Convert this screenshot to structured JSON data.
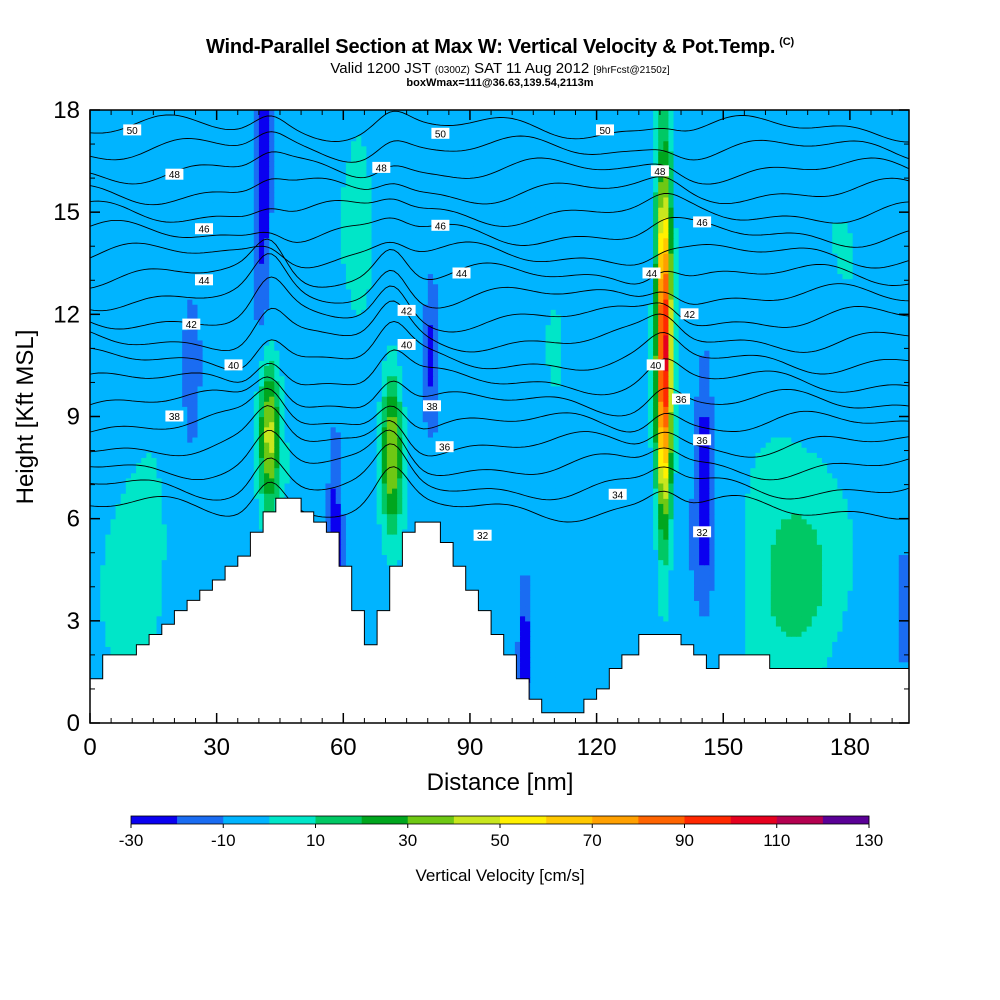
{
  "title": "Wind-Parallel Section at Max W: Vertical Velocity & Pot.Temp.",
  "title_mark": "(C)",
  "subtitle_a": "Valid 1200 JST",
  "subtitle_b": "(0300Z)",
  "subtitle_c": "SAT 11 Aug 2012",
  "subtitle_d": "[9hrFcst@2150z]",
  "subtitle2": "boxWmax=111@36.63,139.54,2113m",
  "chart_data": {
    "type": "heatmap",
    "title": "Wind-Parallel Section at Max W: Vertical Velocity & Pot.Temp.",
    "xlabel": "Distance [nm]",
    "ylabel": "Height [Kft MSL]",
    "xlim": [
      0,
      194
    ],
    "ylim": [
      0,
      18
    ],
    "x_ticks": [
      0,
      30,
      60,
      90,
      120,
      150,
      180
    ],
    "y_ticks": [
      0,
      3,
      6,
      9,
      12,
      15,
      18
    ],
    "colorbar": {
      "label": "Vertical Velocity [cm/s]",
      "tick_labels": [
        -30,
        -10,
        10,
        30,
        50,
        70,
        90,
        110,
        130
      ],
      "bounds": [
        -30,
        -20,
        -10,
        0,
        10,
        20,
        30,
        40,
        50,
        60,
        70,
        80,
        90,
        100,
        110,
        120,
        130
      ],
      "colors": [
        "#0a00f0",
        "#1a6cf2",
        "#00b4ff",
        "#00e6c8",
        "#00c864",
        "#00a61e",
        "#6ec814",
        "#c8e61e",
        "#fff000",
        "#ffc800",
        "#ffa000",
        "#ff6400",
        "#ff2800",
        "#e6001e",
        "#b40050",
        "#5a0096"
      ]
    },
    "background_level": -5,
    "updrafts": [
      {
        "x": 42.5,
        "y": 8.5,
        "sx": 1.7,
        "sy": 1.5,
        "peak": 48
      },
      {
        "x": 71.5,
        "y": 8.0,
        "sx": 1.8,
        "sy": 1.6,
        "peak": 50
      },
      {
        "x": 136,
        "y": 11.0,
        "sx": 1.3,
        "sy": 3.4,
        "peak": 111
      },
      {
        "x": 64,
        "y": 14.5,
        "sx": 2.5,
        "sy": 3,
        "peak": 8
      },
      {
        "x": 110,
        "y": 11,
        "sx": 3,
        "sy": 3,
        "peak": 6
      },
      {
        "x": 10,
        "y": 5.0,
        "sx": 8,
        "sy": 1.8,
        "peak": 9
      },
      {
        "x": 168,
        "y": 4.0,
        "sx": 8,
        "sy": 2,
        "peak": 22
      },
      {
        "x": 180,
        "y": 12,
        "sx": 5,
        "sy": 3,
        "peak": 6
      }
    ],
    "downdrafts": [
      {
        "x": 41,
        "y": 16.5,
        "sx": 1.2,
        "sy": 2.5,
        "peak": -28
      },
      {
        "x": 58,
        "y": 5.3,
        "sx": 1.3,
        "sy": 2.0,
        "peak": -25
      },
      {
        "x": 103,
        "y": 2.2,
        "sx": 1.0,
        "sy": 1.3,
        "peak": -22
      },
      {
        "x": 145.5,
        "y": 7.0,
        "sx": 1.4,
        "sy": 1.8,
        "peak": -30
      },
      {
        "x": 81,
        "y": 11.0,
        "sx": 1.3,
        "sy": 1.5,
        "peak": -18
      },
      {
        "x": 24,
        "y": 10.0,
        "sx": 1.5,
        "sy": 1.5,
        "peak": -15
      },
      {
        "x": 193,
        "y": 3.6,
        "sx": 1.3,
        "sy": 1.2,
        "peak": -18
      }
    ],
    "terrain": [
      [
        0,
        1.3
      ],
      [
        3,
        1.3
      ],
      [
        3,
        2
      ],
      [
        11,
        2
      ],
      [
        11,
        2.3
      ],
      [
        14,
        2.3
      ],
      [
        14,
        2.6
      ],
      [
        17,
        2.6
      ],
      [
        17,
        2.9
      ],
      [
        20,
        2.9
      ],
      [
        20,
        3.3
      ],
      [
        23,
        3.3
      ],
      [
        23,
        3.6
      ],
      [
        26,
        3.6
      ],
      [
        26,
        3.9
      ],
      [
        29,
        3.9
      ],
      [
        29,
        4.2
      ],
      [
        32,
        4.2
      ],
      [
        32,
        4.6
      ],
      [
        35,
        4.6
      ],
      [
        35,
        4.9
      ],
      [
        38,
        4.9
      ],
      [
        38,
        5.6
      ],
      [
        41,
        5.6
      ],
      [
        41,
        6.2
      ],
      [
        44,
        6.2
      ],
      [
        44,
        6.6
      ],
      [
        50,
        6.6
      ],
      [
        50,
        6.2
      ],
      [
        53,
        6.2
      ],
      [
        53,
        5.9
      ],
      [
        56,
        5.9
      ],
      [
        56,
        5.6
      ],
      [
        59,
        5.6
      ],
      [
        59,
        4.6
      ],
      [
        62,
        4.6
      ],
      [
        62,
        3.3
      ],
      [
        65,
        3.3
      ],
      [
        65,
        2.3
      ],
      [
        68,
        2.3
      ],
      [
        68,
        3.3
      ],
      [
        71,
        3.3
      ],
      [
        71,
        4.6
      ],
      [
        74,
        4.6
      ],
      [
        74,
        5.6
      ],
      [
        77,
        5.6
      ],
      [
        77,
        5.9
      ],
      [
        83,
        5.9
      ],
      [
        83,
        5.3
      ],
      [
        86,
        5.3
      ],
      [
        86,
        4.6
      ],
      [
        89,
        4.6
      ],
      [
        89,
        3.9
      ],
      [
        92,
        3.9
      ],
      [
        92,
        3.3
      ],
      [
        95,
        3.3
      ],
      [
        95,
        2.6
      ],
      [
        98,
        2.6
      ],
      [
        98,
        2.0
      ],
      [
        101,
        2.0
      ],
      [
        101,
        1.3
      ],
      [
        104,
        1.3
      ],
      [
        104,
        0.7
      ],
      [
        107,
        0.7
      ],
      [
        107,
        0.3
      ],
      [
        117,
        0.3
      ],
      [
        117,
        0.7
      ],
      [
        120,
        0.7
      ],
      [
        120,
        1.0
      ],
      [
        123,
        1.0
      ],
      [
        123,
        1.6
      ],
      [
        126,
        1.6
      ],
      [
        126,
        2.0
      ],
      [
        130,
        2.0
      ],
      [
        130,
        2.6
      ],
      [
        140,
        2.6
      ],
      [
        140,
        2.3
      ],
      [
        143,
        2.3
      ],
      [
        143,
        2.0
      ],
      [
        146,
        2.0
      ],
      [
        146,
        1.6
      ],
      [
        149,
        1.6
      ],
      [
        149,
        2.0
      ],
      [
        161,
        2.0
      ],
      [
        161,
        1.6
      ],
      [
        194,
        1.6
      ],
      [
        194,
        1.3
      ]
    ],
    "theta_levels": [
      32,
      33,
      34,
      35,
      36,
      37,
      38,
      39,
      40,
      41,
      42,
      43,
      44,
      45,
      46,
      47,
      48,
      49,
      50
    ],
    "theta_labels": [
      {
        "text": "50",
        "x": 10,
        "y": 17.4
      },
      {
        "text": "48",
        "x": 20,
        "y": 16.1
      },
      {
        "text": "46",
        "x": 27,
        "y": 14.5
      },
      {
        "text": "44",
        "x": 27,
        "y": 13.0
      },
      {
        "text": "42",
        "x": 24,
        "y": 11.7
      },
      {
        "text": "40",
        "x": 34,
        "y": 10.5
      },
      {
        "text": "38",
        "x": 20,
        "y": 9.0
      },
      {
        "text": "50",
        "x": 83,
        "y": 17.3
      },
      {
        "text": "48",
        "x": 69,
        "y": 16.3
      },
      {
        "text": "46",
        "x": 83,
        "y": 14.6
      },
      {
        "text": "44",
        "x": 88,
        "y": 13.2
      },
      {
        "text": "42",
        "x": 75,
        "y": 12.1
      },
      {
        "text": "40",
        "x": 75,
        "y": 11.1
      },
      {
        "text": "38",
        "x": 81,
        "y": 9.3
      },
      {
        "text": "36",
        "x": 84,
        "y": 8.1
      },
      {
        "text": "32",
        "x": 93,
        "y": 5.5
      },
      {
        "text": "50",
        "x": 122,
        "y": 17.4
      },
      {
        "text": "48",
        "x": 135,
        "y": 16.2
      },
      {
        "text": "46",
        "x": 145,
        "y": 14.7
      },
      {
        "text": "44",
        "x": 133,
        "y": 13.2
      },
      {
        "text": "42",
        "x": 142,
        "y": 12.0
      },
      {
        "text": "40",
        "x": 134,
        "y": 10.5
      },
      {
        "text": "36",
        "x": 140,
        "y": 9.5
      },
      {
        "text": "36",
        "x": 145,
        "y": 8.3
      },
      {
        "text": "34",
        "x": 125,
        "y": 6.7
      },
      {
        "text": "32",
        "x": 145,
        "y": 5.6
      }
    ]
  }
}
